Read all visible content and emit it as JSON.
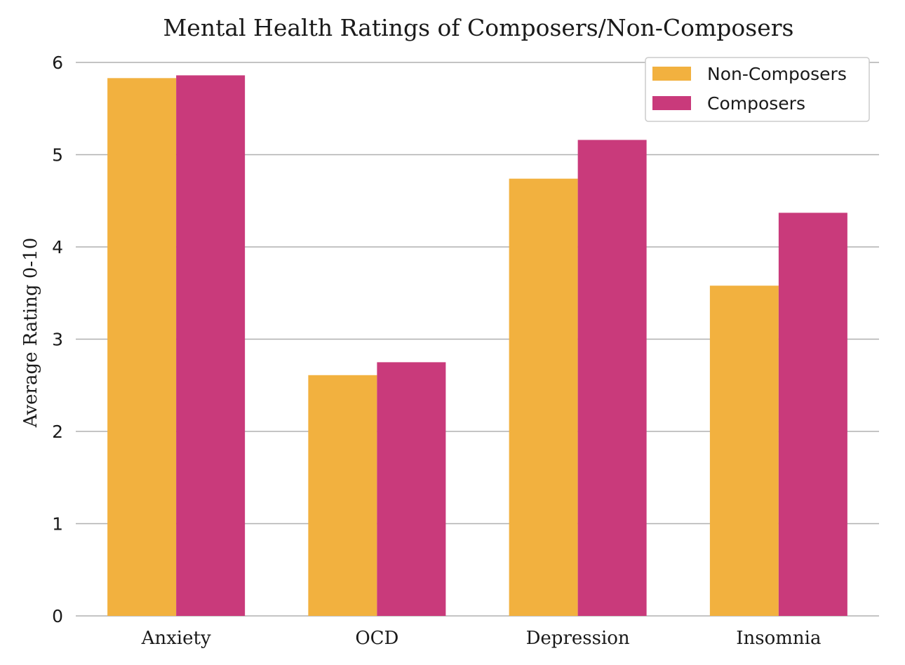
{
  "chart_data": {
    "type": "bar",
    "title": "Mental Health Ratings of Composers/Non-Composers",
    "xlabel": "",
    "ylabel": "Average Rating 0-10",
    "categories": [
      "Anxiety",
      "OCD",
      "Depression",
      "Insomnia"
    ],
    "series": [
      {
        "name": "Non-Composers",
        "color": "#F2B13F",
        "values": [
          5.83,
          2.61,
          4.74,
          3.58
        ]
      },
      {
        "name": "Composers",
        "color": "#C93A7B",
        "values": [
          5.86,
          2.75,
          5.16,
          4.37
        ]
      }
    ],
    "ylim": [
      0,
      6
    ],
    "yticks": [
      "0",
      "1",
      "2",
      "3",
      "4",
      "5",
      "6"
    ],
    "grid": "horizontal",
    "legend_position": "top-right"
  }
}
